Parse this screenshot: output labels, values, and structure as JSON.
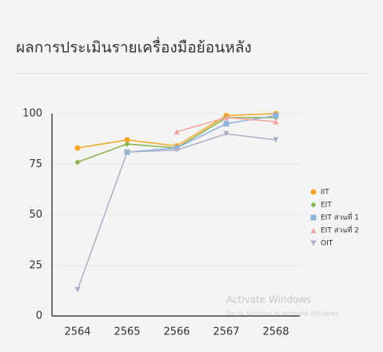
{
  "chart_data": {
    "type": "line",
    "title": "ผลการประเมินรายเครื่องมือย้อนหลัง",
    "categories": [
      "2564",
      "2565",
      "2566",
      "2567",
      "2568"
    ],
    "series": [
      {
        "name": "IIT",
        "color": "#f5a623",
        "marker": "circle",
        "values": [
          83,
          87,
          84,
          99,
          100
        ]
      },
      {
        "name": "EIT",
        "color": "#8ab34a",
        "marker": "diamond",
        "values": [
          76,
          85,
          83,
          98,
          98
        ]
      },
      {
        "name": "EIT ส่วนที่ 1",
        "color": "#8fb3e0",
        "marker": "square",
        "values": [
          null,
          81,
          83,
          95,
          99
        ]
      },
      {
        "name": "EIT ส่วนที่ 2",
        "color": "#f4a6a0",
        "marker": "triangle",
        "values": [
          null,
          null,
          91,
          98,
          96
        ]
      },
      {
        "name": "OIT",
        "color": "#aab0c8",
        "marker": "triangle-down",
        "values": [
          13,
          81,
          82,
          90,
          87
        ]
      }
    ],
    "ylim": [
      0,
      100
    ],
    "yticks": [
      0,
      25,
      50,
      75,
      100
    ],
    "grid": true,
    "legend": "right",
    "watermark": {
      "title": "Activate Windows",
      "subtitle": "Go to Settings to activate Windows."
    }
  }
}
